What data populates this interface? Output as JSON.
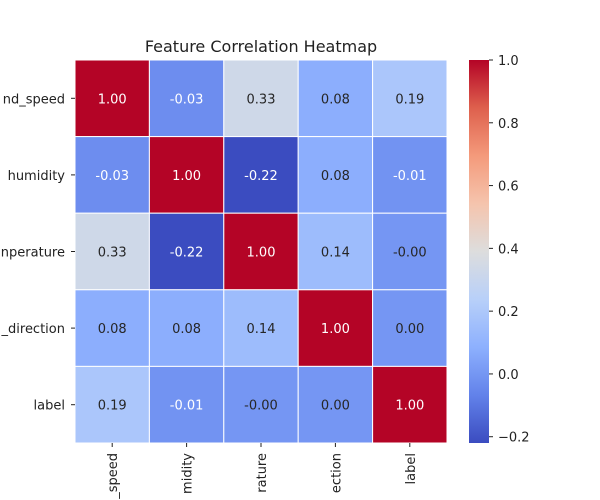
{
  "chart_data": {
    "type": "heatmap",
    "title": "Feature Correlation Heatmap",
    "row_tick_labels": [
      "nd_speed",
      "humidity",
      "nperature",
      "_direction",
      "label"
    ],
    "col_tick_labels": [
      "_speed",
      "midity",
      "rature",
      "ection",
      "label"
    ],
    "values": [
      [
        1.0,
        -0.03,
        0.33,
        0.08,
        0.19
      ],
      [
        -0.03,
        1.0,
        -0.22,
        0.08,
        -0.01
      ],
      [
        0.33,
        -0.22,
        1.0,
        0.14,
        -0.0
      ],
      [
        0.08,
        0.08,
        0.14,
        1.0,
        0.0
      ],
      [
        0.19,
        -0.01,
        -0.0,
        0.0,
        1.0
      ]
    ],
    "value_labels": [
      [
        "1.00",
        "-0.03",
        "0.33",
        "0.08",
        "0.19"
      ],
      [
        "-0.03",
        "1.00",
        "-0.22",
        "0.08",
        "-0.01"
      ],
      [
        "0.33",
        "-0.22",
        "1.00",
        "0.14",
        "-0.00"
      ],
      [
        "0.08",
        "0.08",
        "0.14",
        "1.00",
        "0.00"
      ],
      [
        "0.19",
        "-0.01",
        "-0.00",
        "0.00",
        "1.00"
      ]
    ],
    "colormap": "coolwarm",
    "vmin": -0.22,
    "vmax": 1.0,
    "colorbar_ticks": [
      -0.2,
      0.0,
      0.2,
      0.4,
      0.6,
      0.8,
      1.0
    ],
    "colorbar_tick_labels": [
      "−0.2",
      "0.0",
      "0.2",
      "0.4",
      "0.6",
      "0.8",
      "1.0"
    ],
    "grid": false,
    "colorbar_placement": "right"
  }
}
